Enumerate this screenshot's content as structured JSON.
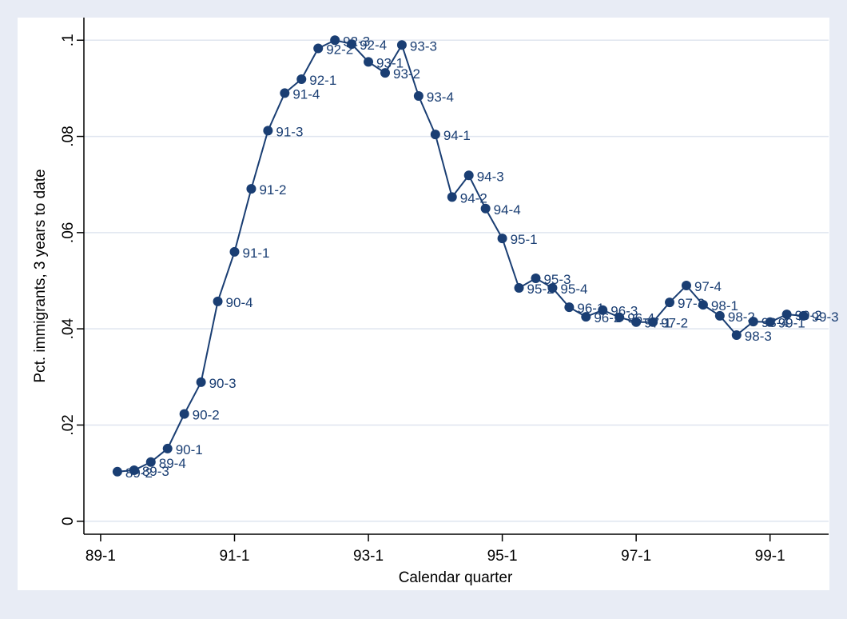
{
  "chart_data": {
    "type": "line",
    "x_title": "Calendar quarter",
    "y_title": "Pct. immigrants, 3 years to date",
    "x": [
      117,
      118,
      119,
      120,
      121,
      122,
      123,
      124,
      125,
      126,
      127,
      128,
      129,
      130,
      131,
      132,
      133,
      134,
      135,
      136,
      137,
      138,
      139,
      140,
      141,
      142,
      143,
      144,
      145,
      146,
      147,
      148,
      149,
      150,
      151,
      152,
      153,
      154,
      155,
      156,
      157,
      158
    ],
    "point_labels": [
      "89-2",
      "89-3",
      "89-4",
      "90-1",
      "90-2",
      "90-3",
      "90-4",
      "91-1",
      "91-2",
      "91-3",
      "91-4",
      "92-1",
      "92-2",
      "92-3",
      "92-4",
      "93-1",
      "93-2",
      "93-3",
      "93-4",
      "94-1",
      "94-2",
      "94-3",
      "94-4",
      "95-1",
      "95-2",
      "95-3",
      "95-4",
      "96-1",
      "96-2",
      "96-3",
      "96-4",
      "97-1",
      "97-2",
      "97-3",
      "97-4",
      "98-1",
      "98-2",
      "98-3",
      "98-4",
      "99-1",
      "99-2",
      "99-3"
    ],
    "series": [
      {
        "color": "#1a3e73",
        "values": [
          0.0103,
          0.0106,
          0.0123,
          0.0151,
          0.0223,
          0.0289,
          0.0457,
          0.056,
          0.0691,
          0.0812,
          0.089,
          0.0919,
          0.0983,
          0.1,
          0.0992,
          0.0955,
          0.0932,
          0.099,
          0.0884,
          0.0804,
          0.0674,
          0.0719,
          0.065,
          0.0588,
          0.0485,
          0.0505,
          0.0485,
          0.0445,
          0.0425,
          0.0439,
          0.0424,
          0.0414,
          0.0414,
          0.0455,
          0.049,
          0.045,
          0.0427,
          0.0387,
          0.0415,
          0.0414,
          0.043,
          0.0427
        ]
      }
    ],
    "xlim": [
      115,
      159.5
    ],
    "xticks": [
      {
        "value": 116,
        "label": "89-1"
      },
      {
        "value": 124,
        "label": "91-1"
      },
      {
        "value": 132,
        "label": "93-1"
      },
      {
        "value": 140,
        "label": "95-1"
      },
      {
        "value": 148,
        "label": "97-1"
      },
      {
        "value": 156,
        "label": "99-1"
      }
    ],
    "ylim": [
      -0.0027,
      0.1047
    ],
    "yticks": [
      0,
      {
        "value": 0.02,
        "label": ".02"
      },
      {
        "value": 0.04,
        "label": ".04"
      },
      {
        "value": 0.06,
        "label": ".06"
      },
      {
        "value": 0.08,
        "label": ".08"
      },
      {
        "value": 0.1,
        "label": ".1"
      }
    ],
    "grid": true
  }
}
